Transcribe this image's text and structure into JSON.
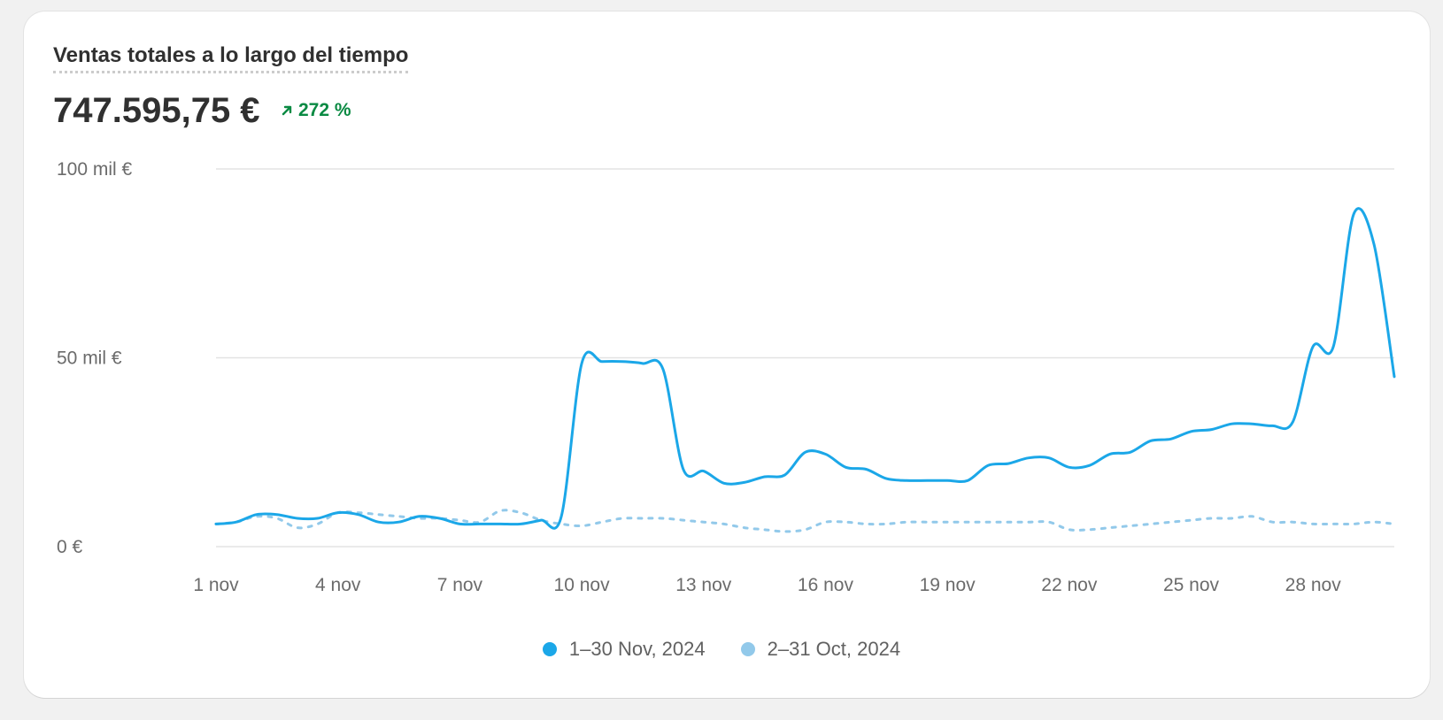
{
  "card": {
    "title": "Ventas totales a lo largo del tiempo",
    "total": "747.595,75 €",
    "change": "272 %",
    "change_icon": "arrow-up-right-icon",
    "change_color": "#0a8a43"
  },
  "colors": {
    "current": "#1ba7e8",
    "previous": "#92c9ea",
    "grid": "#e3e3e3"
  },
  "chart_data": {
    "type": "line",
    "y_tick_labels": [
      "0 €",
      "50 mil €",
      "100 mil €"
    ],
    "y_ticks": [
      0,
      50000,
      100000
    ],
    "ylim": [
      0,
      100000
    ],
    "x_tick_labels": [
      "1 nov",
      "4 nov",
      "7 nov",
      "10 nov",
      "13 nov",
      "16 nov",
      "19 nov",
      "22 nov",
      "25 nov",
      "28 nov"
    ],
    "x_ticks": [
      1,
      4,
      7,
      10,
      13,
      16,
      19,
      22,
      25,
      28
    ],
    "x": [
      1,
      1.5,
      2,
      2.5,
      3,
      3.5,
      4,
      4.5,
      5,
      5.5,
      6,
      6.5,
      7,
      7.5,
      8,
      8.5,
      9,
      9.5,
      10,
      10.5,
      11,
      11.5,
      12,
      12.5,
      13,
      13.5,
      14,
      14.5,
      15,
      15.5,
      16,
      16.5,
      17,
      17.5,
      18,
      18.5,
      19,
      19.5,
      20,
      20.5,
      21,
      21.5,
      22,
      22.5,
      23,
      23.5,
      24,
      24.5,
      25,
      25.5,
      26,
      26.5,
      27,
      27.5,
      28,
      28.5,
      29,
      29.5,
      30
    ],
    "xlim": [
      1,
      30
    ],
    "grid": true,
    "legend_position": "bottom",
    "series": [
      {
        "name": "1–30 Nov, 2024",
        "style": "solid",
        "values": [
          6000,
          6500,
          8500,
          8500,
          7500,
          7500,
          9000,
          8500,
          6500,
          6500,
          8000,
          7500,
          6000,
          6000,
          6000,
          6000,
          7000,
          8000,
          48500,
          49000,
          49000,
          48500,
          47000,
          20500,
          20000,
          16800,
          17000,
          18500,
          19000,
          25000,
          24500,
          21000,
          20500,
          18000,
          17500,
          17500,
          17500,
          17500,
          21500,
          22000,
          23500,
          23500,
          21000,
          21500,
          24500,
          25000,
          28000,
          28500,
          30500,
          31000,
          32500,
          32500,
          32000,
          33000,
          53000,
          53000,
          88000,
          80000,
          45000
        ]
      },
      {
        "name": "2–31 Oct, 2024",
        "style": "dashed",
        "values": [
          6000,
          6500,
          8000,
          7500,
          5000,
          6000,
          9000,
          9000,
          8500,
          8000,
          7500,
          7500,
          7000,
          6500,
          9500,
          9000,
          7000,
          6000,
          5500,
          6500,
          7500,
          7500,
          7500,
          7000,
          6500,
          6000,
          5000,
          4500,
          4000,
          4500,
          6500,
          6500,
          6000,
          6000,
          6500,
          6500,
          6500,
          6500,
          6500,
          6500,
          6500,
          6500,
          4500,
          4500,
          5000,
          5500,
          6000,
          6500,
          7000,
          7500,
          7500,
          8000,
          6500,
          6500,
          6000,
          6000,
          6000,
          6500,
          6000
        ]
      }
    ]
  }
}
